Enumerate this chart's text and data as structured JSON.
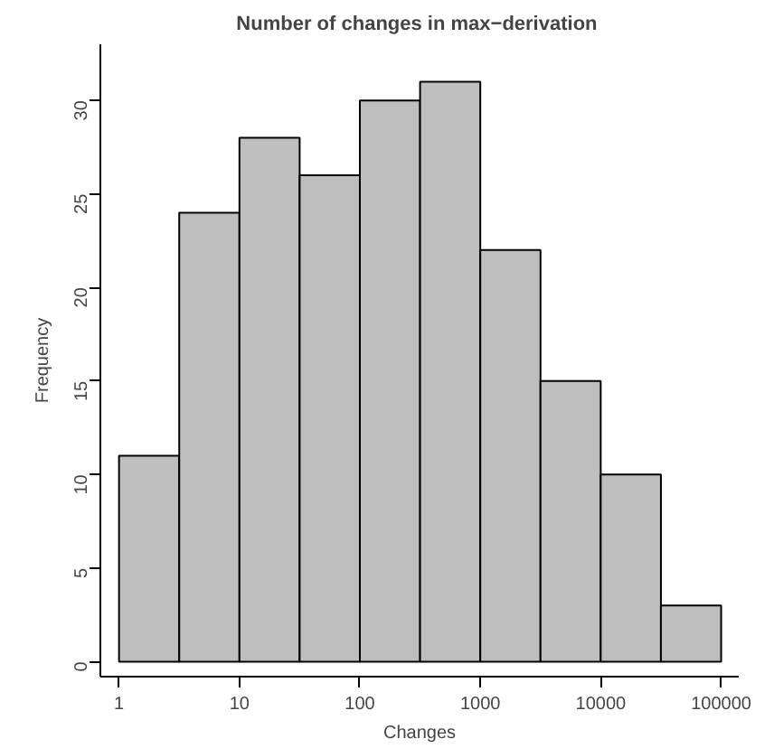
{
  "chart_data": {
    "type": "histogram",
    "title": "Number of changes in  max−derivation",
    "xlabel": "Changes",
    "ylabel": "Frequency",
    "bins": [
      1,
      3.1623,
      10,
      31.623,
      100,
      316.23,
      1000,
      3162.3,
      10000,
      31623,
      100000
    ],
    "values": [
      11,
      24,
      28,
      26,
      30,
      31,
      22,
      15,
      10,
      3
    ],
    "color": "#bebebe",
    "log": "x",
    "xlim": [
      0.7,
      140000
    ],
    "ylim": [
      -0.8,
      33
    ],
    "xticks": [
      1,
      10,
      100,
      1000,
      10000,
      100000
    ],
    "yticks": [
      0,
      5,
      10,
      15,
      20,
      25,
      30
    ],
    "grid": false
  }
}
